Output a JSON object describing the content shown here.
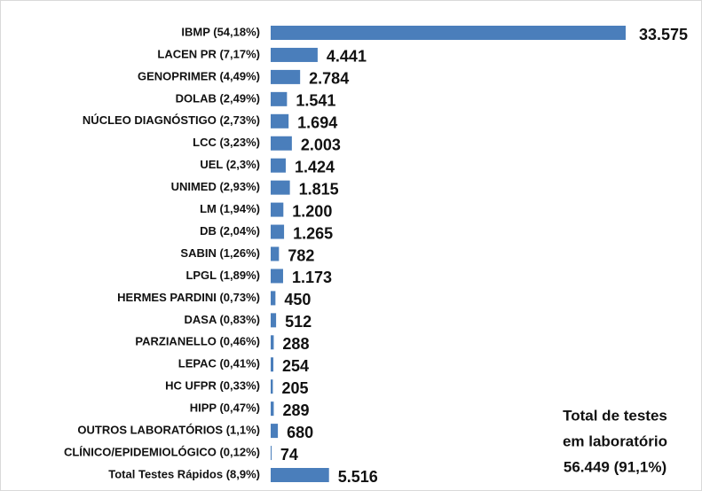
{
  "chart_data": {
    "type": "bar",
    "orientation": "horizontal",
    "color": "#4a7ebb",
    "categories": [
      "IBMP (54,18%)",
      "LACEN PR (7,17%)",
      "GENOPRIMER (4,49%)",
      "DOLAB (2,49%)",
      "NÚCLEO DIAGNÓSTIGO (2,73%)",
      "LCC (3,23%)",
      "UEL (2,3%)",
      "UNIMED (2,93%)",
      "LM (1,94%)",
      "DB (2,04%)",
      "SABIN (1,26%)",
      "LPGL (1,89%)",
      "HERMES PARDINI (0,73%)",
      "DASA (0,83%)",
      "PARZIANELLO (0,46%)",
      "LEPAC (0,41%)",
      "HC UFPR (0,33%)",
      "HIPP (0,47%)",
      "OUTROS LABORATÓRIOS (1,1%)",
      "CLÍNICO/EPIDEMIOLÓGICO (0,12%)",
      "Total Testes Rápidos (8,9%)"
    ],
    "values": [
      33575,
      4441,
      2784,
      1541,
      1694,
      2003,
      1424,
      1815,
      1200,
      1265,
      782,
      1173,
      450,
      512,
      288,
      254,
      205,
      289,
      680,
      74,
      5516
    ],
    "value_labels": [
      "33.575",
      "4.441",
      "2.784",
      "1.541",
      "1.694",
      "2.003",
      "1.424",
      "1.815",
      "1.200",
      "1.265",
      "782",
      "1.173",
      "450",
      "512",
      "288",
      "254",
      "205",
      "289",
      "680",
      "74",
      "5.516"
    ],
    "annotation": [
      "Total de testes",
      "em laboratório",
      "56.449 (91,1%)"
    ]
  }
}
